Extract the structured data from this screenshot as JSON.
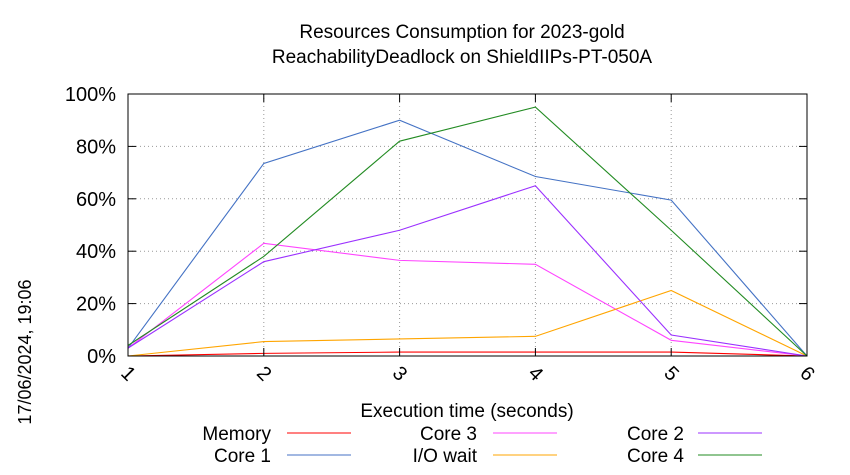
{
  "chart_data": {
    "type": "line",
    "title": "Resources Consumption for 2023-gold",
    "subtitle": "ReachabilityDeadlock on ShieldIIPs-PT-050A",
    "xlabel": "Execution time (seconds)",
    "ylabel": "",
    "side_label": "17/06/2024, 19:06",
    "x": [
      1,
      2,
      3,
      4,
      5,
      6
    ],
    "x_tick_labels": [
      "1",
      "2",
      "3",
      "4",
      "5",
      "6"
    ],
    "xlim": [
      1,
      6
    ],
    "ylim": [
      0,
      100
    ],
    "y_ticks": [
      0,
      20,
      40,
      60,
      80,
      100
    ],
    "y_tick_labels": [
      "0%",
      "20%",
      "40%",
      "60%",
      "80%",
      "100%"
    ],
    "grid": true,
    "legend_position": "bottom",
    "series": [
      {
        "name": "Memory",
        "color": "#ff0000",
        "values": [
          0,
          1,
          1.5,
          1.5,
          1.5,
          0
        ]
      },
      {
        "name": "Core 1",
        "color": "#4472c4",
        "values": [
          3,
          73.5,
          90,
          68.5,
          59.5,
          0
        ]
      },
      {
        "name": "Core 3",
        "color": "#ff44ff",
        "values": [
          3,
          43,
          36.5,
          35,
          6,
          0
        ]
      },
      {
        "name": "I/O wait",
        "color": "#ffa500",
        "values": [
          0,
          5.5,
          6.5,
          7.5,
          25,
          0
        ]
      },
      {
        "name": "Core 2",
        "color": "#9b30ff",
        "values": [
          3,
          36,
          48,
          65,
          8,
          0
        ]
      },
      {
        "name": "Core 4",
        "color": "#228b22",
        "values": [
          4,
          38,
          82,
          95,
          48,
          0
        ]
      }
    ]
  }
}
